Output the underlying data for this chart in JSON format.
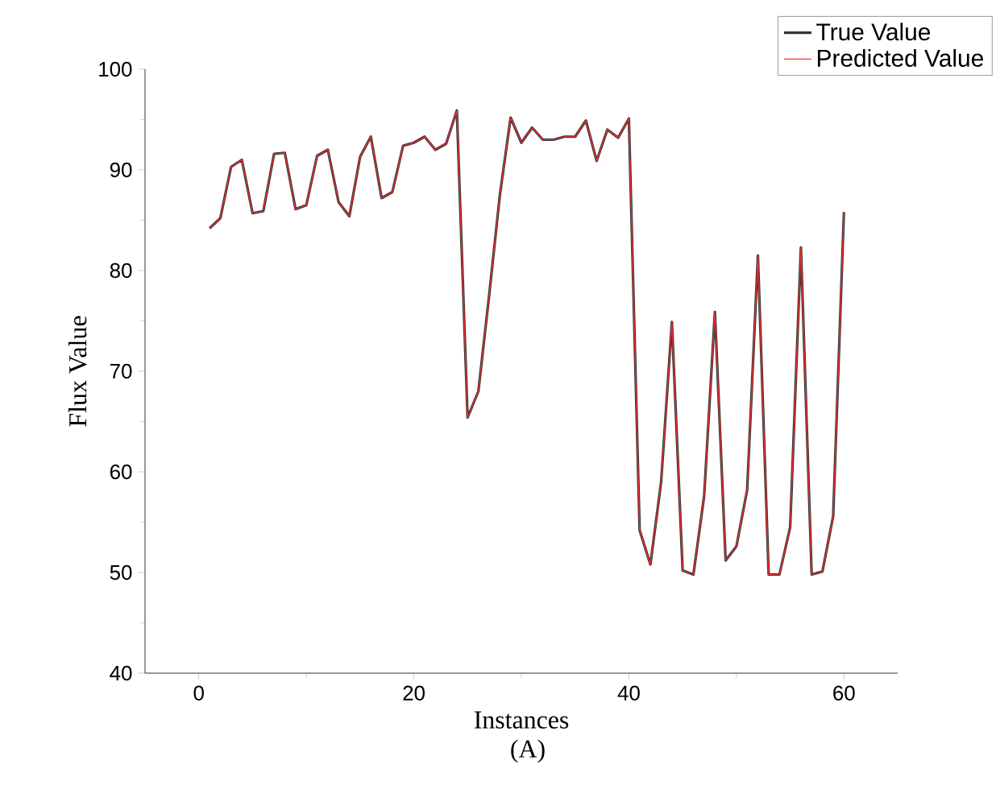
{
  "chart_data": {
    "type": "line",
    "xlabel": "Instances",
    "ylabel": "Flux Value",
    "annotations": [
      "(A)"
    ],
    "x": [
      1,
      2,
      3,
      4,
      5,
      6,
      7,
      8,
      9,
      10,
      11,
      12,
      13,
      14,
      15,
      16,
      17,
      18,
      19,
      20,
      21,
      22,
      23,
      24,
      25,
      26,
      27,
      28,
      29,
      30,
      31,
      32,
      33,
      34,
      35,
      36,
      37,
      38,
      39,
      40,
      41,
      42,
      43,
      44,
      45,
      46,
      47,
      48,
      49,
      50,
      51,
      52,
      53,
      54,
      55,
      56,
      57,
      58,
      59,
      60
    ],
    "series": [
      {
        "name": "True Value",
        "color": "#333333",
        "values": [
          84.2,
          85.2,
          90.3,
          91.0,
          85.7,
          85.9,
          91.6,
          91.7,
          86.1,
          86.5,
          91.4,
          92.0,
          86.8,
          85.4,
          91.3,
          93.3,
          87.2,
          87.8,
          92.4,
          92.7,
          93.3,
          92.0,
          92.6,
          95.9,
          65.4,
          68.0,
          77.5,
          87.5,
          95.2,
          92.7,
          94.2,
          93.0,
          93.0,
          93.3,
          93.3,
          94.9,
          90.9,
          94.0,
          93.2,
          95.1,
          54.2,
          50.8,
          59.0,
          74.9,
          50.2,
          49.8,
          57.6,
          75.9,
          51.2,
          52.6,
          58.2,
          81.5,
          49.8,
          49.8,
          54.5,
          82.3,
          49.8,
          50.1,
          55.6,
          85.8
        ]
      },
      {
        "name": "Predicted Value",
        "color": "#ff3030",
        "values": [
          84.2,
          85.2,
          90.3,
          91.0,
          85.7,
          85.9,
          91.6,
          91.7,
          86.1,
          86.5,
          91.4,
          92.0,
          86.8,
          85.4,
          91.3,
          93.3,
          87.2,
          87.8,
          92.4,
          92.7,
          93.3,
          92.0,
          92.6,
          95.9,
          65.4,
          68.0,
          77.5,
          87.5,
          95.2,
          92.7,
          94.2,
          93.0,
          93.0,
          93.3,
          93.3,
          94.9,
          90.9,
          94.0,
          93.2,
          95.1,
          54.2,
          50.8,
          59.0,
          74.9,
          50.2,
          49.8,
          57.6,
          75.9,
          51.2,
          52.6,
          58.2,
          81.5,
          49.8,
          49.8,
          54.5,
          82.3,
          49.8,
          50.1,
          55.6,
          85.8
        ]
      }
    ],
    "xlim": [
      -5,
      65
    ],
    "ylim": [
      40,
      100
    ],
    "xticks": [
      0,
      20,
      40,
      60
    ],
    "yticks": [
      40,
      50,
      60,
      70,
      80,
      90,
      100
    ],
    "grid": false,
    "legend": "top right",
    "marker": "none",
    "line_style": "solid"
  }
}
